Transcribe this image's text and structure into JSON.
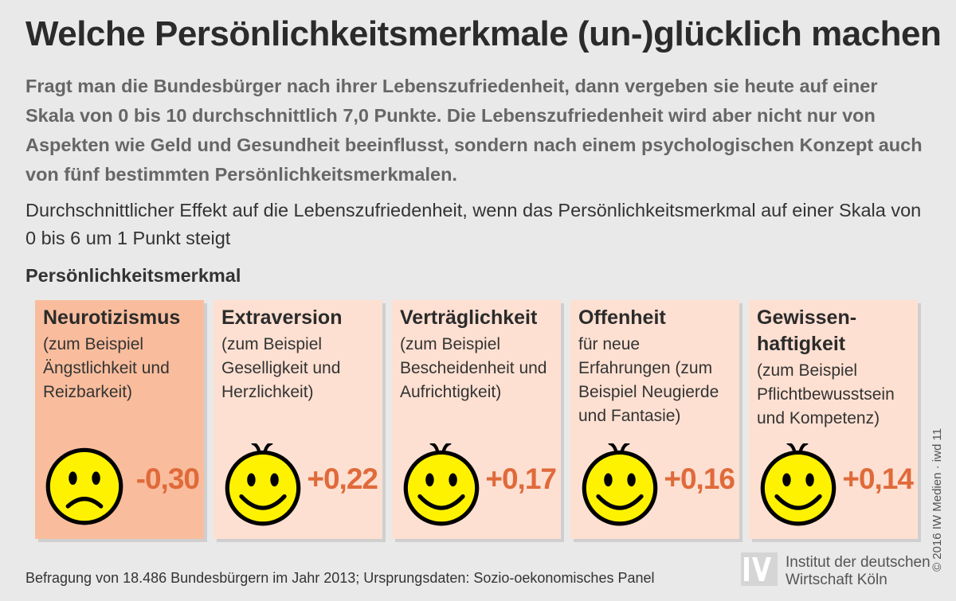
{
  "title": "Welche Persönlichkeitsmerkmale (un-)glücklich machen",
  "intro": "Fragt man die Bundesbürger nach ihrer Lebenszufriedenheit, dann vergeben sie heute auf einer Skala von 0 bis 10 durchschnittlich 7,0 Punkte. Die Lebenszufriedenheit wird aber nicht nur von Aspekten wie Geld und Gesundheit beeinflusst, sondern nach einem psychologischen Konzept auch von fünf bestimmten Persönlichkeitsmerkmalen.",
  "subtitle": "Durchschnittlicher Effekt auf die Lebenszufriedenheit, wenn das Persönlichkeitsmerkmal auf einer Skala von 0 bis 6 um 1 Punkt steigt",
  "section_label": "Persönlichkeitsmerkmal",
  "cards": [
    {
      "title": "Neurotizismus",
      "desc": "(zum Beispiel Ängstlichkeit und Reizbarkeit)",
      "value": "-0,30",
      "mood": "sad"
    },
    {
      "title": "Extraversion",
      "desc": "(zum Beispiel Geselligkeit und Herzlichkeit)",
      "value": "+0,22",
      "mood": "happy"
    },
    {
      "title": "Verträglichkeit",
      "desc": "(zum Beispiel Bescheidenheit und Aufrichtigkeit)",
      "value": "+0,17",
      "mood": "happy"
    },
    {
      "title": "Offenheit",
      "desc": "für neue Erfahrungen (zum Beispiel Neugierde und Fantasie)",
      "value": "+0,16",
      "mood": "happy"
    },
    {
      "title": "Gewissen-haftigkeit",
      "desc": "(zum Beispiel Pflichtbewusstsein und Kompetenz)",
      "value": "+0,14",
      "mood": "happy"
    }
  ],
  "source": "Befragung von 18.486 Bundesbürgern im Jahr 2013; Ursprungsdaten: Sozio-oekonomisches Panel",
  "logo": {
    "line1": "Institut der deutschen",
    "line2": "Wirtschaft Köln"
  },
  "copyright": "© 2016 IW Medien · iwd 11",
  "colors": {
    "positive_card": "#fde0d2",
    "negative_card": "#f9bd9d",
    "value": "#e06a3a",
    "face": "#fff200"
  }
}
